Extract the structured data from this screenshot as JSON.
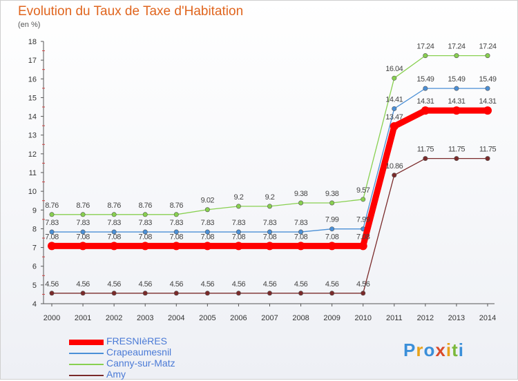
{
  "title": "Evolution du Taux de Taxe d'Habitation",
  "subtitle": "(en %)",
  "logo_text": "Proxiti",
  "chart_data": {
    "type": "line",
    "x": [
      "2000",
      "2001",
      "2002",
      "2003",
      "2004",
      "2005",
      "2006",
      "2007",
      "2008",
      "2009",
      "2010",
      "2011",
      "2012",
      "2013",
      "2014"
    ],
    "ylim": [
      4,
      18
    ],
    "yticks": [
      4,
      5,
      6,
      7,
      8,
      9,
      10,
      11,
      12,
      13,
      14,
      15,
      16,
      17,
      18
    ],
    "grid": false,
    "legend_position": "bottom-left",
    "series": [
      {
        "name": "FRESNIèRES",
        "color": "#ff0000",
        "values": [
          7.08,
          7.08,
          7.08,
          7.08,
          7.08,
          7.08,
          7.08,
          7.08,
          7.08,
          7.08,
          7.08,
          13.47,
          14.31,
          14.31,
          14.31
        ],
        "labels": [
          "7.08",
          "7.08",
          "7.08",
          "7.08",
          "7.08",
          "7.08",
          "7.08",
          "7.08",
          "7.08",
          "7.08",
          "7.08",
          "13.47",
          "14.31",
          "14.31",
          "14.31"
        ]
      },
      {
        "name": "Crapeaumesnil",
        "color": "#4a8fd6",
        "values": [
          7.83,
          7.83,
          7.83,
          7.83,
          7.83,
          7.83,
          7.83,
          7.83,
          7.83,
          7.99,
          7.99,
          14.41,
          15.49,
          15.49,
          15.49
        ],
        "labels": [
          "7.83",
          "7.83",
          "7.83",
          "7.83",
          "7.83",
          "7.83",
          "7.83",
          "7.83",
          "7.83",
          "7.99",
          "7.99",
          "14.41",
          "15.49",
          "15.49",
          "15.49"
        ]
      },
      {
        "name": "Canny-sur-Matz",
        "color": "#88d050",
        "values": [
          8.76,
          8.76,
          8.76,
          8.76,
          8.76,
          9.02,
          9.2,
          9.2,
          9.38,
          9.38,
          9.57,
          16.04,
          17.24,
          17.24,
          17.24
        ],
        "labels": [
          "8.76",
          "8.76",
          "8.76",
          "8.76",
          "8.76",
          "9.02",
          "9.2",
          "9.2",
          "9.38",
          "9.38",
          "9.57",
          "16.04",
          "17.24",
          "17.24",
          "17.24"
        ]
      },
      {
        "name": "Amy",
        "color": "#7a2a2a",
        "values": [
          4.56,
          4.56,
          4.56,
          4.56,
          4.56,
          4.56,
          4.56,
          4.56,
          4.56,
          4.56,
          4.56,
          10.86,
          11.75,
          11.75,
          11.75
        ],
        "labels": [
          "4.56",
          "4.56",
          "4.56",
          "4.56",
          "4.56",
          "4.56",
          "4.56",
          "4.56",
          "4.56",
          "4.56",
          "4.56",
          "10.86",
          "11.75",
          "11.75",
          "11.75"
        ]
      }
    ]
  }
}
